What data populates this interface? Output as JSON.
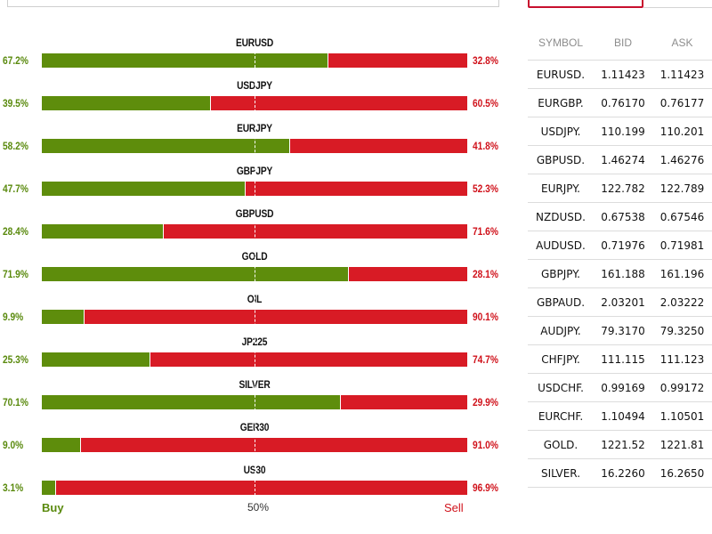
{
  "sentiment": {
    "rows": [
      {
        "symbol": "EURUSD",
        "buy_pct": "67.2%",
        "sell_pct": "32.8%",
        "buy_value": 67.2
      },
      {
        "symbol": "USDJPY",
        "buy_pct": "39.5%",
        "sell_pct": "60.5%",
        "buy_value": 39.5
      },
      {
        "symbol": "EURJPY",
        "buy_pct": "58.2%",
        "sell_pct": "41.8%",
        "buy_value": 58.2
      },
      {
        "symbol": "GBPJPY",
        "buy_pct": "47.7%",
        "sell_pct": "52.3%",
        "buy_value": 47.7
      },
      {
        "symbol": "GBPUSD",
        "buy_pct": "28.4%",
        "sell_pct": "71.6%",
        "buy_value": 28.4
      },
      {
        "symbol": "GOLD",
        "buy_pct": "71.9%",
        "sell_pct": "28.1%",
        "buy_value": 71.9
      },
      {
        "symbol": "OIL",
        "buy_pct": "9.9%",
        "sell_pct": "90.1%",
        "buy_value": 9.9
      },
      {
        "symbol": "JP225",
        "buy_pct": "25.3%",
        "sell_pct": "74.7%",
        "buy_value": 25.3
      },
      {
        "symbol": "SILVER",
        "buy_pct": "70.1%",
        "sell_pct": "29.9%",
        "buy_value": 70.1
      },
      {
        "symbol": "GER30",
        "buy_pct": "9.0%",
        "sell_pct": "91.0%",
        "buy_value": 9.0
      },
      {
        "symbol": "US30",
        "buy_pct": "3.1%",
        "sell_pct": "96.9%",
        "buy_value": 3.1
      }
    ],
    "buy_label": "Buy",
    "mid_label": "50%",
    "sell_label": "Sell",
    "colors": {
      "buy": "#5e8d0c",
      "sell": "#d81b25"
    }
  },
  "quotes": {
    "headers": {
      "symbol": "SYMBOL",
      "bid": "BID",
      "ask": "ASK"
    },
    "rows": [
      {
        "symbol": "EURUSD.",
        "bid": "1.11423",
        "ask": "1.11423"
      },
      {
        "symbol": "EURGBP.",
        "bid": "0.76170",
        "ask": "0.76177"
      },
      {
        "symbol": "USDJPY.",
        "bid": "110.199",
        "ask": "110.201"
      },
      {
        "symbol": "GBPUSD.",
        "bid": "1.46274",
        "ask": "1.46276"
      },
      {
        "symbol": "EURJPY.",
        "bid": "122.782",
        "ask": "122.789"
      },
      {
        "symbol": "NZDUSD.",
        "bid": "0.67538",
        "ask": "0.67546"
      },
      {
        "symbol": "AUDUSD.",
        "bid": "0.71976",
        "ask": "0.71981"
      },
      {
        "symbol": "GBPJPY.",
        "bid": "161.188",
        "ask": "161.196"
      },
      {
        "symbol": "GBPAUD.",
        "bid": "2.03201",
        "ask": "2.03222"
      },
      {
        "symbol": "AUDJPY.",
        "bid": "79.3170",
        "ask": "79.3250"
      },
      {
        "symbol": "CHFJPY.",
        "bid": "111.115",
        "ask": "111.123"
      },
      {
        "symbol": "USDCHF.",
        "bid": "0.99169",
        "ask": "0.99172"
      },
      {
        "symbol": "EURCHF.",
        "bid": "1.10494",
        "ask": "1.10501"
      },
      {
        "symbol": "GOLD.",
        "bid": "1221.52",
        "ask": "1221.81"
      },
      {
        "symbol": "SILVER.",
        "bid": "16.2260",
        "ask": "16.2650"
      }
    ]
  }
}
